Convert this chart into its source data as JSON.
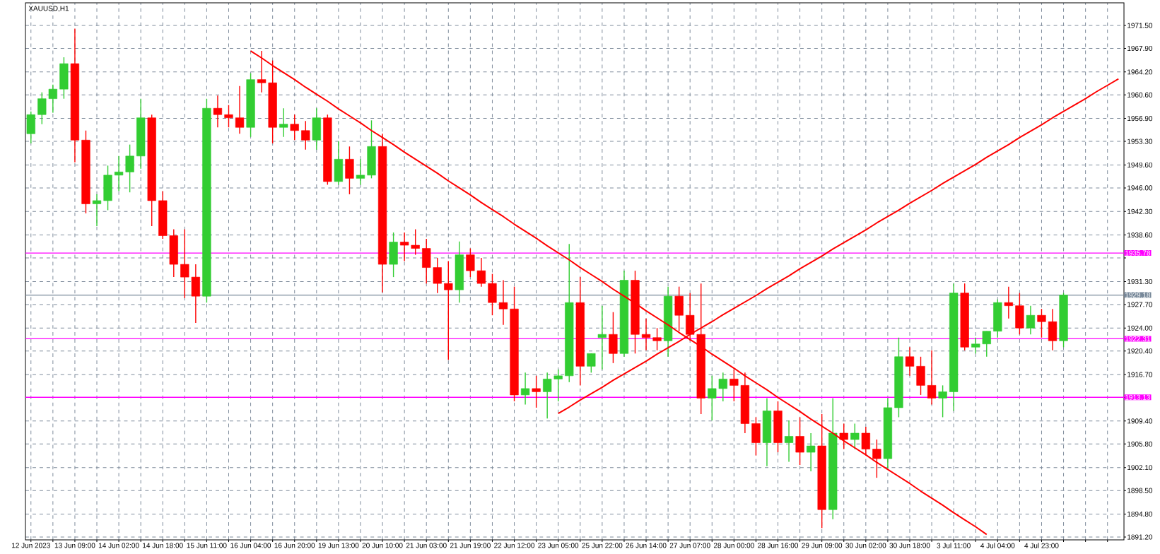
{
  "chart_data": {
    "type": "candlestick",
    "title": "XAUUSD,H1",
    "categories": [
      "12 Jun 2023",
      null,
      null,
      null,
      "13 Jun 09:00",
      null,
      null,
      null,
      "14 Jun 02:00",
      null,
      null,
      null,
      "14 Jun 18:00",
      null,
      null,
      null,
      "15 Jun 11:00",
      null,
      null,
      null,
      "16 Jun 04:00",
      null,
      null,
      null,
      "16 Jun 20:00",
      null,
      null,
      null,
      "19 Jun 13:00",
      null,
      null,
      null,
      "20 Jun 10:00",
      null,
      null,
      null,
      "21 Jun 03:00",
      null,
      null,
      null,
      "21 Jun 19:00",
      null,
      null,
      null,
      "22 Jun 12:00",
      null,
      null,
      null,
      "23 Jun 05:00",
      null,
      null,
      null,
      "25 Jun 22:00",
      null,
      null,
      null,
      "26 Jun 14:00",
      null,
      null,
      null,
      "27 Jun 07:00",
      null,
      null,
      null,
      "28 Jun 00:00",
      null,
      null,
      null,
      "28 Jun 16:00",
      null,
      null,
      null,
      "29 Jun 09:00",
      null,
      null,
      null,
      "30 Jun 02:00",
      null,
      null,
      null,
      "30 Jun 18:00",
      null,
      null,
      null,
      "3 Jul 11:00",
      null,
      null,
      null,
      "4 Jul 04:00",
      null,
      null,
      null,
      "4 Jul 23:00",
      null,
      null,
      null,
      null,
      null,
      null,
      null
    ],
    "ohlc": [
      [
        1954.5,
        1958,
        1953,
        1957.5
      ],
      [
        1957.5,
        1961,
        1956,
        1960
      ],
      [
        1960,
        1962.2,
        1957.8,
        1961.5
      ],
      [
        1961.5,
        1966.5,
        1960,
        1965.5
      ],
      [
        1965.5,
        1971,
        1950,
        1953.5
      ],
      [
        1953.5,
        1955,
        1942,
        1943.5
      ],
      [
        1943.5,
        1945,
        1940,
        1944
      ],
      [
        1944,
        1949.5,
        1942.5,
        1948
      ],
      [
        1948,
        1951,
        1945.5,
        1948.5
      ],
      [
        1948.5,
        1952.8,
        1945.3,
        1951
      ],
      [
        1951,
        1960,
        1949,
        1957
      ],
      [
        1957,
        1957.5,
        1940,
        1944
      ],
      [
        1944,
        1945.5,
        1938,
        1938.5
      ],
      [
        1938.5,
        1939.5,
        1932,
        1934
      ],
      [
        1934,
        1939.5,
        1928.7,
        1932
      ],
      [
        1932,
        1934,
        1924.8,
        1929
      ],
      [
        1929,
        1960,
        1928,
        1958.5
      ],
      [
        1958.5,
        1960.5,
        1955.5,
        1957.5
      ],
      [
        1957.5,
        1959,
        1955.5,
        1957
      ],
      [
        1957,
        1962,
        1954.5,
        1955.5
      ],
      [
        1955.5,
        1964,
        1954,
        1963
      ],
      [
        1963,
        1967.5,
        1961,
        1962.5
      ],
      [
        1962.5,
        1966,
        1953,
        1955.5
      ],
      [
        1955.5,
        1958.5,
        1954,
        1956
      ],
      [
        1956,
        1957.5,
        1953.5,
        1955
      ],
      [
        1955,
        1956.5,
        1952,
        1953.5
      ],
      [
        1953.5,
        1958.5,
        1952,
        1957
      ],
      [
        1957,
        1957.5,
        1946.5,
        1947
      ],
      [
        1947,
        1953.3,
        1946.5,
        1950.5
      ],
      [
        1950.5,
        1952.5,
        1945,
        1947.5
      ],
      [
        1947.5,
        1950.5,
        1946.5,
        1948
      ],
      [
        1948,
        1956.6,
        1947.5,
        1952.5
      ],
      [
        1952.5,
        1954.5,
        1929.6,
        1934
      ],
      [
        1934,
        1939,
        1932,
        1937.5
      ],
      [
        1937.5,
        1939,
        1934.5,
        1937
      ],
      [
        1937,
        1939.5,
        1935.5,
        1936.5
      ],
      [
        1936.5,
        1938,
        1931,
        1933.5
      ],
      [
        1933.5,
        1935,
        1929.5,
        1931
      ],
      [
        1931,
        1934.5,
        1919,
        1930
      ],
      [
        1930,
        1937.6,
        1928,
        1935.5
      ],
      [
        1935.5,
        1936.5,
        1932,
        1933
      ],
      [
        1933,
        1935,
        1930.5,
        1931
      ],
      [
        1931,
        1932.5,
        1926,
        1928
      ],
      [
        1928,
        1931.5,
        1924.5,
        1927
      ],
      [
        1927,
        1930.5,
        1912.5,
        1913.5
      ],
      [
        1913.5,
        1917,
        1912,
        1914.5
      ],
      [
        1914.5,
        1916.5,
        1911.5,
        1914
      ],
      [
        1914,
        1917,
        1909.8,
        1916
      ],
      [
        1916,
        1917.5,
        1912.5,
        1916.5
      ],
      [
        1916.5,
        1937.2,
        1915.5,
        1928
      ],
      [
        1928,
        1932,
        1915,
        1918
      ],
      [
        1918,
        1920,
        1917,
        1920
      ],
      [
        1922.5,
        1927.5,
        1917.5,
        1923
      ],
      [
        1923,
        1926.5,
        1918.5,
        1920
      ],
      [
        1920,
        1933,
        1919.5,
        1931.5
      ],
      [
        1931.5,
        1933,
        1920,
        1923
      ],
      [
        1923,
        1925.5,
        1920.5,
        1922.5
      ],
      [
        1922.5,
        1924,
        1920.5,
        1922
      ],
      [
        1922,
        1930.5,
        1919.5,
        1929
      ],
      [
        1929,
        1930.5,
        1923.5,
        1926
      ],
      [
        1926,
        1929.5,
        1922,
        1923
      ],
      [
        1923,
        1931,
        1910.5,
        1913
      ],
      [
        1913,
        1916.5,
        1909.5,
        1914.5
      ],
      [
        1914.5,
        1917,
        1912.5,
        1916
      ],
      [
        1916,
        1917.5,
        1912.5,
        1915
      ],
      [
        1915,
        1917,
        1907.5,
        1909
      ],
      [
        1909,
        1910,
        1904,
        1906
      ],
      [
        1906,
        1913,
        1902.3,
        1911
      ],
      [
        1911,
        1912.5,
        1904.5,
        1906
      ],
      [
        1906,
        1909.5,
        1903,
        1907
      ],
      [
        1907,
        1910,
        1902.5,
        1904.5
      ],
      [
        1904.5,
        1907.5,
        1901.5,
        1905.5
      ],
      [
        1905.5,
        1910.5,
        1892.6,
        1895.5
      ],
      [
        1895.5,
        1913,
        1894,
        1907.5
      ],
      [
        1907.5,
        1909,
        1905,
        1906.5
      ],
      [
        1906.5,
        1909,
        1905,
        1907.5
      ],
      [
        1907.5,
        1908.5,
        1904,
        1905
      ],
      [
        1905,
        1906.5,
        1900.5,
        1903.5
      ],
      [
        1903.5,
        1913,
        1902,
        1911.5
      ],
      [
        1911.5,
        1922.5,
        1910,
        1919.5
      ],
      [
        1919.5,
        1921,
        1916.5,
        1918
      ],
      [
        1918,
        1919.5,
        1913.5,
        1915
      ],
      [
        1915,
        1920.5,
        1912,
        1913
      ],
      [
        1913,
        1915,
        1910,
        1914
      ],
      [
        1914,
        1931,
        1911,
        1929.5
      ],
      [
        1929.5,
        1931,
        1920.5,
        1921
      ],
      [
        1921,
        1922.5,
        1920,
        1921.5
      ],
      [
        1921.5,
        1923.5,
        1919.5,
        1923.5
      ],
      [
        1923.5,
        1928.5,
        1922.5,
        1928
      ],
      [
        1928,
        1930.5,
        1925.5,
        1927.5
      ],
      [
        1927.5,
        1929.5,
        1923,
        1924
      ],
      [
        1924,
        1927.5,
        1923,
        1926
      ],
      [
        1926,
        1927,
        1922.5,
        1925
      ],
      [
        1925,
        1927,
        1920.5,
        1922
      ],
      [
        1922,
        1929.5,
        1921,
        1929.18
      ],
      null,
      null,
      null,
      null,
      null
    ],
    "colors": [
      "#32cd32",
      "#32cd32",
      "#32cd32",
      "#32cd32",
      "#ff0000",
      "#ff0000",
      "#32cd32",
      "#32cd32",
      "#32cd32",
      "#32cd32",
      "#32cd32",
      "#ff0000",
      "#ff0000",
      "#ff0000",
      "#ff0000",
      "#ff0000",
      "#32cd32",
      "#ff0000",
      "#ff0000",
      "#ff0000",
      "#32cd32",
      "#ff0000",
      "#ff0000",
      "#32cd32",
      "#ff0000",
      "#ff0000",
      "#32cd32",
      "#ff0000",
      "#32cd32",
      "#ff0000",
      "#32cd32",
      "#32cd32",
      "#ff0000",
      "#32cd32",
      "#ff0000",
      "#ff0000",
      "#ff0000",
      "#ff0000",
      "#ff0000",
      "#32cd32",
      "#ff0000",
      "#ff0000",
      "#ff0000",
      "#ff0000",
      "#ff0000",
      "#32cd32",
      "#ff0000",
      "#32cd32",
      "#32cd32",
      "#32cd32",
      "#ff0000",
      "#32cd32",
      "#32cd32",
      "#ff0000",
      "#32cd32",
      "#ff0000",
      "#ff0000",
      "#ff0000",
      "#32cd32",
      "#ff0000",
      "#ff0000",
      "#ff0000",
      "#32cd32",
      "#32cd32",
      "#ff0000",
      "#ff0000",
      "#ff0000",
      "#32cd32",
      "#ff0000",
      "#32cd32",
      "#ff0000",
      "#32cd32",
      "#ff0000",
      "#32cd32",
      "#ff0000",
      "#32cd32",
      "#ff0000",
      "#ff0000",
      "#32cd32",
      "#32cd32",
      "#ff0000",
      "#ff0000",
      "#ff0000",
      "#32cd32",
      "#32cd32",
      "#ff0000",
      "#32cd32",
      "#32cd32",
      "#32cd32",
      "#ff0000",
      "#ff0000",
      "#32cd32",
      "#ff0000",
      "#ff0000",
      "#32cd32",
      null,
      null,
      null,
      null,
      null
    ],
    "series": [
      {
        "type": "line",
        "color": "#ff0000",
        "values": [
          null,
          null,
          null,
          null,
          null,
          null,
          null,
          null,
          null,
          null,
          null,
          null,
          null,
          null,
          null,
          null,
          null,
          null,
          null,
          null,
          1967.5,
          1966.4,
          1965.2,
          1964.1,
          1963.0,
          1961.8,
          1960.7,
          1959.6,
          1958.4,
          1957.3,
          1956.2,
          1955.0,
          1953.9,
          1952.8,
          1951.6,
          1950.5,
          1949.4,
          1948.3,
          1947.1,
          1946.0,
          1944.9,
          1943.7,
          1942.6,
          1941.5,
          1940.3,
          1939.2,
          1938.1,
          1936.9,
          1935.8,
          1934.7,
          1933.5,
          1932.4,
          1931.3,
          1930.1,
          1929.0,
          1927.9,
          1926.7,
          1925.6,
          1924.5,
          1923.3,
          1922.2,
          1921.1,
          1919.9,
          1918.8,
          1917.7,
          1916.5,
          1915.4,
          1914.3,
          1913.1,
          1912.0,
          1910.9,
          1909.7,
          1908.6,
          1907.5,
          1906.3,
          1905.2,
          1904.1,
          1902.9,
          1901.8,
          1900.7,
          1899.6,
          1898.4,
          1897.3,
          1896.2,
          1895.0,
          1893.9,
          1892.8,
          1891.6,
          null,
          null,
          null,
          null,
          null,
          null,
          null,
          null,
          null,
          null,
          null,
          null
        ]
      },
      {
        "type": "line",
        "color": "#ff0000",
        "values": [
          null,
          null,
          null,
          null,
          null,
          null,
          null,
          null,
          null,
          null,
          null,
          null,
          null,
          null,
          null,
          null,
          null,
          null,
          null,
          null,
          null,
          null,
          null,
          null,
          null,
          null,
          null,
          null,
          null,
          null,
          null,
          null,
          null,
          null,
          null,
          null,
          null,
          null,
          null,
          null,
          null,
          null,
          null,
          null,
          null,
          null,
          null,
          null,
          1910.6,
          1911.6,
          1912.7,
          1913.7,
          1914.7,
          1915.8,
          1916.8,
          1917.8,
          1918.8,
          1919.9,
          1920.9,
          1921.9,
          1923.0,
          1924.0,
          1925.0,
          1926.1,
          1927.1,
          1928.1,
          1929.1,
          1930.2,
          1931.2,
          1932.2,
          1933.3,
          1934.3,
          1935.3,
          1936.4,
          1937.4,
          1938.4,
          1939.4,
          1940.5,
          1941.5,
          1942.5,
          1943.6,
          1944.6,
          1945.6,
          1946.7,
          1947.7,
          1948.7,
          1949.7,
          1950.8,
          1951.8,
          1952.8,
          1953.9,
          1954.9,
          1955.9,
          1957.0,
          1958.0,
          1959.0,
          1960.0,
          1961.1,
          1962.1,
          1963.1
        ]
      }
    ],
    "ref_lines": [
      {
        "axis": "y",
        "value": 1935.78,
        "label": "1935.78",
        "color": "#ff00ff"
      },
      {
        "axis": "y",
        "value": 1922.31,
        "label": "1922.31",
        "color": "#ff00ff"
      },
      {
        "axis": "y",
        "value": 1913.13,
        "label": "1913.13",
        "color": "#ff00ff"
      },
      {
        "axis": "y",
        "value": 1929.18,
        "label": "1929.18",
        "color": "#778899"
      }
    ],
    "ylim": [
      1890.75,
      1975.05
    ],
    "yticks": [
      {
        "value": 1971.5,
        "label": "1971.50"
      },
      {
        "value": 1967.9,
        "label": "1967.90"
      },
      {
        "value": 1964.2,
        "label": "1964.20"
      },
      {
        "value": 1960.6,
        "label": "1960.60"
      },
      {
        "value": 1956.9,
        "label": "1956.90"
      },
      {
        "value": 1953.3,
        "label": "1953.30"
      },
      {
        "value": 1949.6,
        "label": "1949.60"
      },
      {
        "value": 1946,
        "label": "1946.00"
      },
      {
        "value": 1942.3,
        "label": "1942.30"
      },
      {
        "value": 1938.6,
        "label": "1938.60"
      },
      {
        "value": 1935,
        "label": null
      },
      {
        "value": 1931.3,
        "label": "1931.30"
      },
      {
        "value": 1927.7,
        "label": "1927.70"
      },
      {
        "value": 1924,
        "label": "1924.00"
      },
      {
        "value": 1920.4,
        "label": "1920.40"
      },
      {
        "value": 1916.7,
        "label": "1916.70"
      },
      {
        "value": 1913.1,
        "label": null
      },
      {
        "value": 1909.4,
        "label": "1909.40"
      },
      {
        "value": 1905.8,
        "label": "1905.80"
      },
      {
        "value": 1902.1,
        "label": "1902.10"
      },
      {
        "value": 1898.5,
        "label": "1898.50"
      },
      {
        "value": 1894.8,
        "label": "1894.80"
      },
      {
        "value": 1891.2,
        "label": "1891.20"
      }
    ],
    "grid": true
  }
}
